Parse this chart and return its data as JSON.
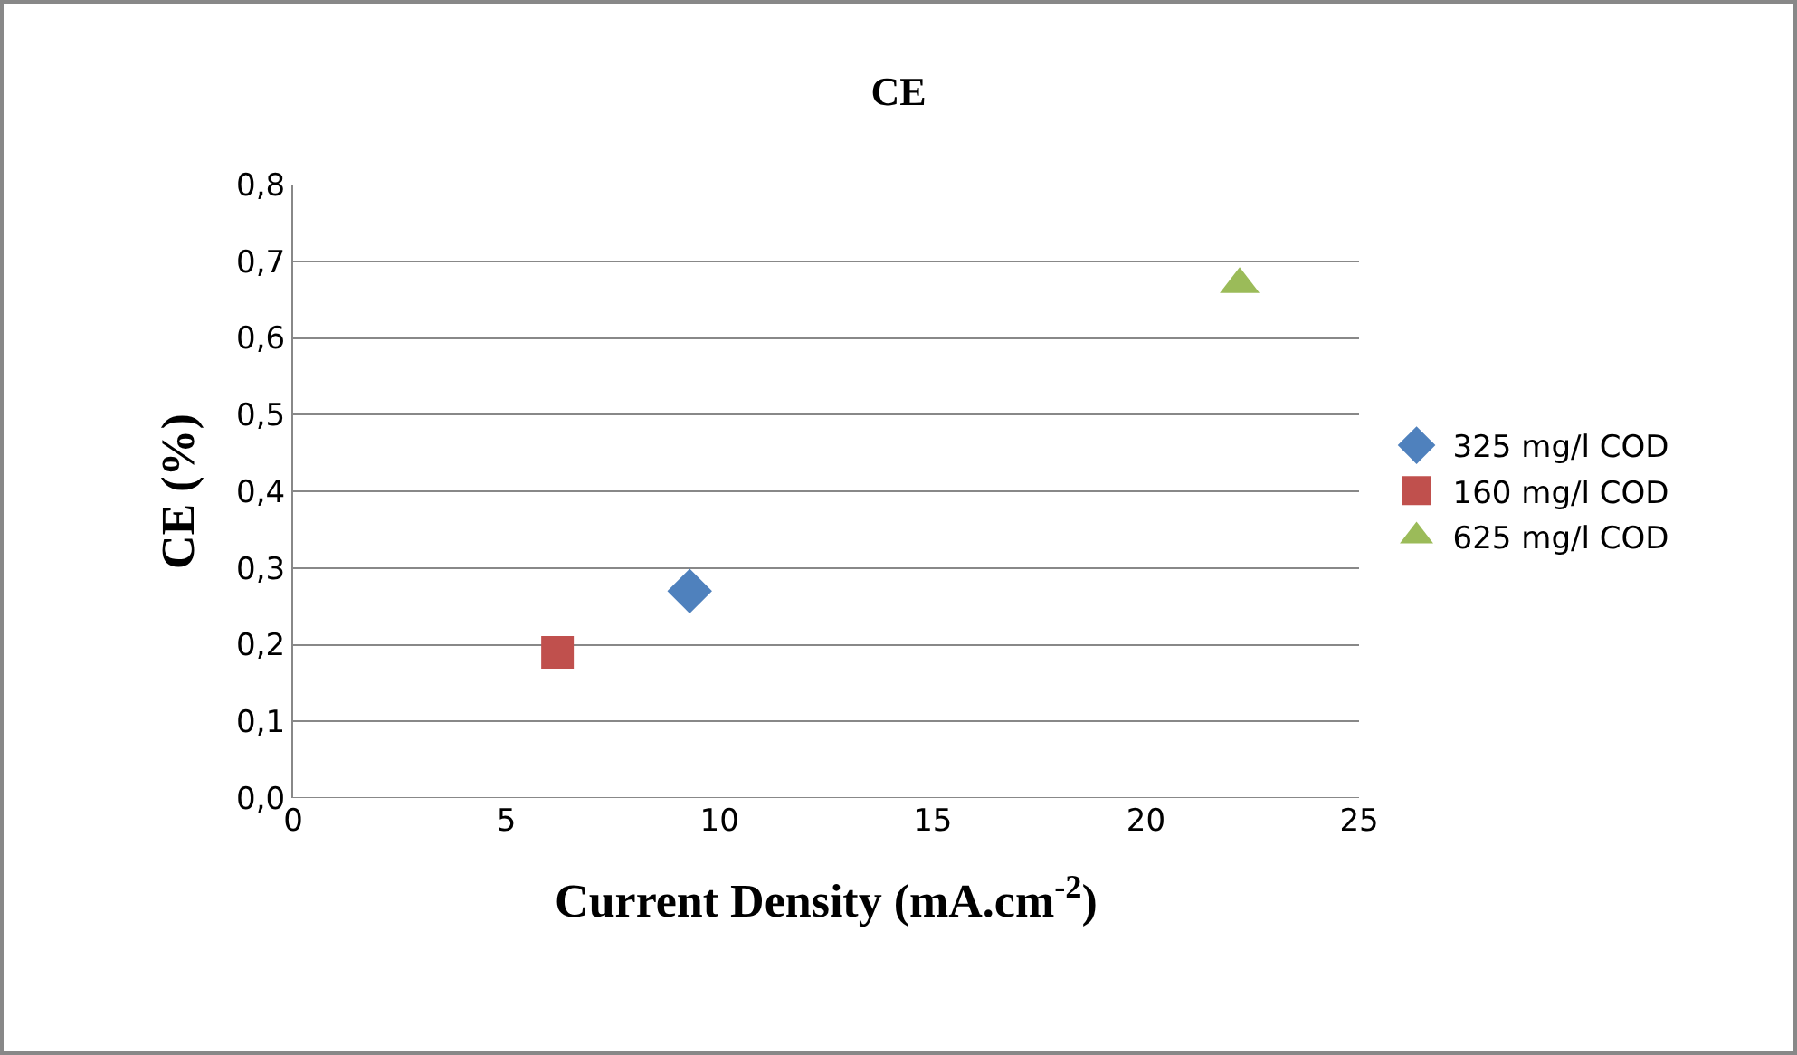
{
  "chart_data": {
    "type": "scatter",
    "title": "CE",
    "xlabel": "Current Density (mA.cm$^{-2}$)",
    "ylabel": "CE (%)",
    "x": [
      6.2,
      9.3,
      22.2
    ],
    "series": [
      {
        "name": "325 mg/l COD",
        "color": "#4f81bd",
        "marker": "diamond",
        "values": [
          null,
          0.27,
          null
        ]
      },
      {
        "name": "160 mg/l COD",
        "color": "#c0504d",
        "marker": "square",
        "values": [
          0.19,
          null,
          null
        ]
      },
      {
        "name": "625 mg/l COD",
        "color": "#9bbb59",
        "marker": "triangle",
        "values": [
          null,
          null,
          0.67
        ]
      }
    ],
    "xlim": [
      0,
      25
    ],
    "xticks": [
      0,
      5,
      10,
      15,
      20,
      25
    ],
    "ylim": [
      0,
      0.8
    ],
    "yticks": [
      {
        "value": 0,
        "label": "0,0"
      },
      {
        "value": 0.1,
        "label": "0,1"
      },
      {
        "value": 0.2,
        "label": "0,2"
      },
      {
        "value": 0.3,
        "label": "0,3"
      },
      {
        "value": 0.4,
        "label": "0,4"
      },
      {
        "value": 0.5,
        "label": "0,5"
      },
      {
        "value": 0.6,
        "label": "0,6"
      },
      {
        "value": 0.7,
        "label": "0,7"
      },
      {
        "value": 0.8,
        "label": "0,8"
      }
    ],
    "grid": "y",
    "legend": "right"
  }
}
